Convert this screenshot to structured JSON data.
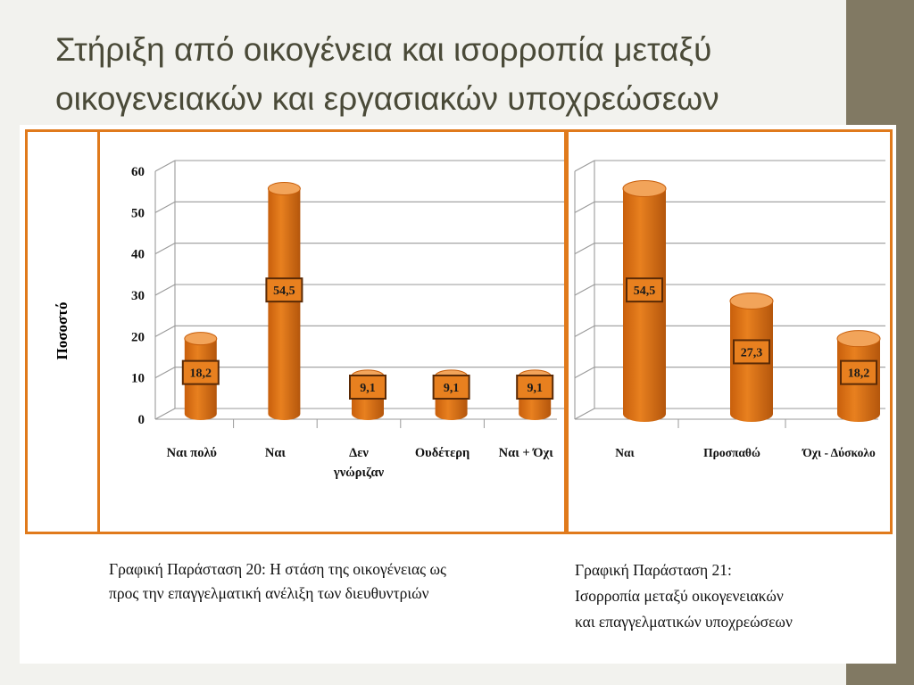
{
  "slide": {
    "title_line1": "Στήριξη από οικογένεια και ισορροπία μεταξύ",
    "title_line2": "οικογενειακών και εργασιακών υποχρεώσεων",
    "accent_color": "#e07a1c",
    "bar_color": "#e8801f",
    "side_band_color": "#817963"
  },
  "y_axis_label": "Ποσοστό",
  "chart_data": [
    {
      "type": "bar",
      "categories": [
        "Ναι πολύ",
        "Ναι",
        "Δεν γνώριζαν",
        "Ουδέτερη",
        "Ναι + Όχι"
      ],
      "values": [
        18.2,
        54.5,
        9.1,
        9.1,
        9.1
      ],
      "data_labels": [
        "18,2",
        "54,5",
        "9,1",
        "9,1",
        "9,1"
      ],
      "yticks": [
        "0",
        "10",
        "20",
        "30",
        "40",
        "50",
        "60"
      ],
      "ylim": [
        0,
        60
      ],
      "ylabel": "Ποσοστό",
      "grid": true,
      "caption_line1": "Γραφική Παράσταση 20: Η στάση της οικογένειας ως",
      "caption_line2": "προς την επαγγελματική ανέλιξη των διευθυντριών"
    },
    {
      "type": "bar",
      "categories": [
        "Ναι",
        "Προσπαθώ",
        "Όχι - Δύσκολο"
      ],
      "values": [
        54.5,
        27.3,
        18.2
      ],
      "data_labels": [
        "54,5",
        "27,3",
        "18,2"
      ],
      "ylim": [
        0,
        60
      ],
      "grid": true,
      "caption_line1": "Γραφική Παράσταση 21:",
      "caption_line2": "Ισορροπία μεταξύ οικογενειακών",
      "caption_line3": "και επαγγελματικών υποχρεώσεων"
    }
  ]
}
